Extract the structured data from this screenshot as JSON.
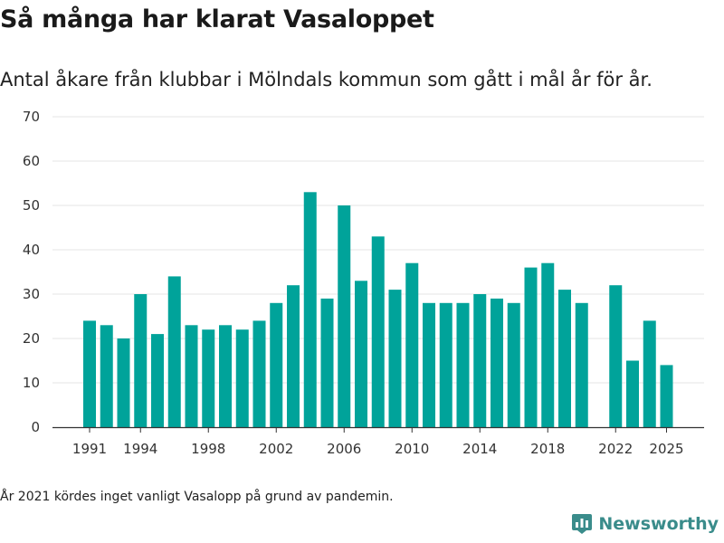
{
  "title": "Så många har klarat Vasaloppet",
  "subtitle": "Antal åkare från klubbar i Mölndals kommun som gått i mål år för år.",
  "note": "År 2021 kördes inget vanligt Vasalopp på grund av pandemin.",
  "brand": {
    "name": "Newsworthy",
    "icon": "bar-chart-logo-icon",
    "color": "#3a8c8b"
  },
  "colors": {
    "bar": "#00a39a",
    "grid": "#e6e6e6",
    "axis": "#333333"
  },
  "chart_data": {
    "type": "bar",
    "title": "Så många har klarat Vasaloppet",
    "xlabel": "",
    "ylabel": "",
    "ylim": [
      0,
      70
    ],
    "yticks": [
      0,
      10,
      20,
      30,
      40,
      50,
      60,
      70
    ],
    "xtick_labels": [
      "1991",
      "1994",
      "1998",
      "2002",
      "2006",
      "2010",
      "2014",
      "2018",
      "2022",
      "2025"
    ],
    "categories": [
      "1991",
      "1992",
      "1993",
      "1994",
      "1995",
      "1996",
      "1997",
      "1998",
      "1999",
      "2000",
      "2001",
      "2002",
      "2003",
      "2004",
      "2005",
      "2006",
      "2007",
      "2008",
      "2009",
      "2010",
      "2011",
      "2012",
      "2013",
      "2014",
      "2015",
      "2016",
      "2017",
      "2018",
      "2019",
      "2020",
      "2021",
      "2022",
      "2023",
      "2024",
      "2025"
    ],
    "values": [
      24,
      23,
      20,
      30,
      21,
      34,
      23,
      22,
      23,
      22,
      24,
      28,
      32,
      53,
      29,
      50,
      33,
      43,
      31,
      37,
      28,
      28,
      28,
      30,
      29,
      28,
      36,
      37,
      31,
      28,
      null,
      32,
      15,
      24,
      14
    ],
    "grid": true
  }
}
